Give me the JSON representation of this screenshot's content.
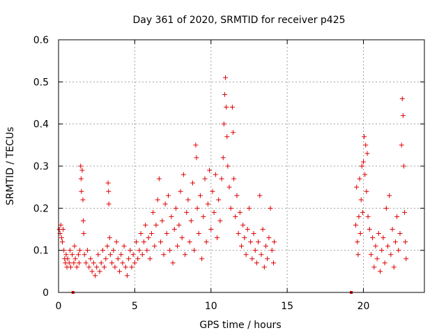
{
  "chart_data": {
    "type": "scatter",
    "title": "Day 361 of 2020, SRMTID for receiver p425",
    "xlabel": "GPS time / hours",
    "ylabel": "SRMTID / TECUs",
    "xlim": [
      0,
      24
    ],
    "ylim": [
      0,
      0.6
    ],
    "xticks": [
      0,
      5,
      10,
      15,
      20
    ],
    "xtick_labels": [
      "0",
      "5",
      "10",
      "15",
      "20"
    ],
    "yticks": [
      0,
      0.1,
      0.2,
      0.3,
      0.4,
      0.5,
      0.6
    ],
    "ytick_labels": [
      "0",
      "0.1",
      "0.2",
      "0.3",
      "0.4",
      "0.5",
      "0.6"
    ],
    "grid": true,
    "marker": "+",
    "colors": {
      "series": "#dd0000",
      "grid": "#a0a0a0",
      "axes": "#000000"
    },
    "gap_markers": [
      {
        "x": 0.95,
        "y": 0
      },
      {
        "x": 19.2,
        "y": 0
      }
    ],
    "series": [
      {
        "name": "SRMTID",
        "points": [
          [
            0.05,
            0.15
          ],
          [
            0.1,
            0.14
          ],
          [
            0.15,
            0.16
          ],
          [
            0.2,
            0.13
          ],
          [
            0.25,
            0.12
          ],
          [
            0.3,
            0.15
          ],
          [
            0.35,
            0.1
          ],
          [
            0.4,
            0.08
          ],
          [
            0.45,
            0.07
          ],
          [
            0.5,
            0.09
          ],
          [
            0.55,
            0.06
          ],
          [
            0.6,
            0.08
          ],
          [
            0.7,
            0.07
          ],
          [
            0.75,
            0.1
          ],
          [
            0.8,
            0.06
          ],
          [
            0.9,
            0.09
          ],
          [
            1.0,
            0.07
          ],
          [
            1.05,
            0.11
          ],
          [
            1.1,
            0.08
          ],
          [
            1.2,
            0.06
          ],
          [
            1.3,
            0.09
          ],
          [
            1.35,
            0.07
          ],
          [
            1.4,
            0.1
          ],
          [
            1.45,
            0.3
          ],
          [
            1.48,
            0.27
          ],
          [
            1.5,
            0.24
          ],
          [
            1.55,
            0.29
          ],
          [
            1.6,
            0.22
          ],
          [
            1.62,
            0.17
          ],
          [
            1.65,
            0.14
          ],
          [
            1.7,
            0.09
          ],
          [
            1.8,
            0.07
          ],
          [
            1.9,
            0.1
          ],
          [
            2.0,
            0.06
          ],
          [
            2.1,
            0.08
          ],
          [
            2.2,
            0.05
          ],
          [
            2.3,
            0.07
          ],
          [
            2.4,
            0.04
          ],
          [
            2.5,
            0.06
          ],
          [
            2.6,
            0.09
          ],
          [
            2.7,
            0.05
          ],
          [
            2.8,
            0.07
          ],
          [
            2.9,
            0.1
          ],
          [
            3.0,
            0.06
          ],
          [
            3.1,
            0.08
          ],
          [
            3.2,
            0.11
          ],
          [
            3.25,
            0.26
          ],
          [
            3.28,
            0.24
          ],
          [
            3.3,
            0.21
          ],
          [
            3.35,
            0.13
          ],
          [
            3.4,
            0.09
          ],
          [
            3.5,
            0.07
          ],
          [
            3.6,
            0.1
          ],
          [
            3.7,
            0.06
          ],
          [
            3.8,
            0.12
          ],
          [
            3.9,
            0.08
          ],
          [
            4.0,
            0.05
          ],
          [
            4.1,
            0.09
          ],
          [
            4.2,
            0.07
          ],
          [
            4.3,
            0.11
          ],
          [
            4.4,
            0.06
          ],
          [
            4.5,
            0.04
          ],
          [
            4.6,
            0.08
          ],
          [
            4.7,
            0.1
          ],
          [
            4.8,
            0.06
          ],
          [
            4.9,
            0.09
          ],
          [
            5.0,
            0.07
          ],
          [
            5.1,
            0.12
          ],
          [
            5.2,
            0.08
          ],
          [
            5.3,
            0.1
          ],
          [
            5.4,
            0.14
          ],
          [
            5.5,
            0.09
          ],
          [
            5.6,
            0.12
          ],
          [
            5.7,
            0.16
          ],
          [
            5.8,
            0.1
          ],
          [
            5.9,
            0.13
          ],
          [
            6.0,
            0.08
          ],
          [
            6.1,
            0.14
          ],
          [
            6.2,
            0.19
          ],
          [
            6.3,
            0.11
          ],
          [
            6.4,
            0.16
          ],
          [
            6.5,
            0.22
          ],
          [
            6.6,
            0.27
          ],
          [
            6.7,
            0.12
          ],
          [
            6.8,
            0.17
          ],
          [
            6.9,
            0.09
          ],
          [
            7.0,
            0.21
          ],
          [
            7.1,
            0.14
          ],
          [
            7.2,
            0.23
          ],
          [
            7.3,
            0.1
          ],
          [
            7.4,
            0.18
          ],
          [
            7.5,
            0.07
          ],
          [
            7.6,
            0.15
          ],
          [
            7.7,
            0.2
          ],
          [
            7.8,
            0.11
          ],
          [
            7.9,
            0.16
          ],
          [
            8.0,
            0.24
          ],
          [
            8.1,
            0.13
          ],
          [
            8.2,
            0.28
          ],
          [
            8.3,
            0.09
          ],
          [
            8.4,
            0.19
          ],
          [
            8.5,
            0.22
          ],
          [
            8.6,
            0.12
          ],
          [
            8.7,
            0.17
          ],
          [
            8.8,
            0.26
          ],
          [
            8.9,
            0.1
          ],
          [
            9.0,
            0.35
          ],
          [
            9.05,
            0.32
          ],
          [
            9.1,
            0.2
          ],
          [
            9.2,
            0.14
          ],
          [
            9.3,
            0.23
          ],
          [
            9.4,
            0.08
          ],
          [
            9.5,
            0.18
          ],
          [
            9.6,
            0.27
          ],
          [
            9.7,
            0.12
          ],
          [
            9.8,
            0.21
          ],
          [
            9.9,
            0.29
          ],
          [
            10.0,
            0.15
          ],
          [
            10.1,
            0.24
          ],
          [
            10.2,
            0.19
          ],
          [
            10.3,
            0.28
          ],
          [
            10.4,
            0.13
          ],
          [
            10.5,
            0.22
          ],
          [
            10.6,
            0.17
          ],
          [
            10.7,
            0.27
          ],
          [
            10.8,
            0.32
          ],
          [
            10.85,
            0.4
          ],
          [
            10.9,
            0.47
          ],
          [
            10.95,
            0.51
          ],
          [
            11.0,
            0.44
          ],
          [
            11.05,
            0.37
          ],
          [
            11.1,
            0.3
          ],
          [
            11.2,
            0.25
          ],
          [
            11.3,
            0.2
          ],
          [
            11.4,
            0.44
          ],
          [
            11.45,
            0.38
          ],
          [
            11.5,
            0.27
          ],
          [
            11.6,
            0.18
          ],
          [
            11.7,
            0.23
          ],
          [
            11.8,
            0.14
          ],
          [
            11.9,
            0.19
          ],
          [
            12.0,
            0.11
          ],
          [
            12.1,
            0.16
          ],
          [
            12.2,
            0.13
          ],
          [
            12.3,
            0.09
          ],
          [
            12.4,
            0.15
          ],
          [
            12.5,
            0.2
          ],
          [
            12.6,
            0.12
          ],
          [
            12.7,
            0.08
          ],
          [
            12.8,
            0.14
          ],
          [
            12.9,
            0.1
          ],
          [
            13.0,
            0.07
          ],
          [
            13.1,
            0.12
          ],
          [
            13.2,
            0.23
          ],
          [
            13.3,
            0.09
          ],
          [
            13.4,
            0.15
          ],
          [
            13.5,
            0.06
          ],
          [
            13.6,
            0.11
          ],
          [
            13.7,
            0.08
          ],
          [
            13.8,
            0.13
          ],
          [
            13.9,
            0.2
          ],
          [
            14.0,
            0.1
          ],
          [
            14.1,
            0.07
          ],
          [
            14.15,
            0.12
          ],
          [
            19.5,
            0.16
          ],
          [
            19.55,
            0.25
          ],
          [
            19.6,
            0.12
          ],
          [
            19.65,
            0.09
          ],
          [
            19.7,
            0.18
          ],
          [
            19.75,
            0.27
          ],
          [
            19.8,
            0.14
          ],
          [
            19.85,
            0.22
          ],
          [
            19.9,
            0.3
          ],
          [
            19.95,
            0.19
          ],
          [
            20.0,
            0.31
          ],
          [
            20.05,
            0.37
          ],
          [
            20.1,
            0.28
          ],
          [
            20.15,
            0.35
          ],
          [
            20.2,
            0.24
          ],
          [
            20.25,
            0.33
          ],
          [
            20.3,
            0.18
          ],
          [
            20.4,
            0.15
          ],
          [
            20.5,
            0.09
          ],
          [
            20.6,
            0.13
          ],
          [
            20.7,
            0.06
          ],
          [
            20.8,
            0.11
          ],
          [
            20.9,
            0.08
          ],
          [
            21.0,
            0.14
          ],
          [
            21.1,
            0.05
          ],
          [
            21.2,
            0.1
          ],
          [
            21.3,
            0.13
          ],
          [
            21.4,
            0.07
          ],
          [
            21.5,
            0.2
          ],
          [
            21.6,
            0.11
          ],
          [
            21.7,
            0.23
          ],
          [
            21.8,
            0.09
          ],
          [
            21.9,
            0.15
          ],
          [
            22.0,
            0.06
          ],
          [
            22.1,
            0.12
          ],
          [
            22.2,
            0.18
          ],
          [
            22.3,
            0.1
          ],
          [
            22.4,
            0.14
          ],
          [
            22.5,
            0.35
          ],
          [
            22.55,
            0.46
          ],
          [
            22.6,
            0.42
          ],
          [
            22.65,
            0.3
          ],
          [
            22.7,
            0.19
          ],
          [
            22.75,
            0.12
          ],
          [
            22.8,
            0.08
          ]
        ]
      }
    ]
  }
}
